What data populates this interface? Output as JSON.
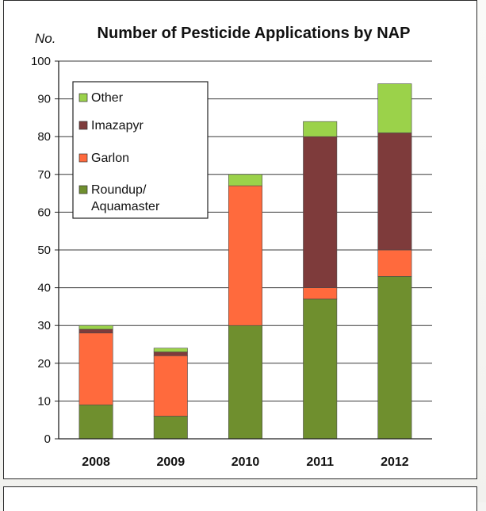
{
  "chart_data": {
    "type": "bar",
    "stacked": true,
    "title": "Number of Pesticide Applications by NAP",
    "ylabel": "No.",
    "xlabel": "",
    "ylim": [
      0,
      100
    ],
    "yticks": [
      0,
      10,
      20,
      30,
      40,
      50,
      60,
      70,
      80,
      90,
      100
    ],
    "categories": [
      "2008",
      "2009",
      "2010",
      "2011",
      "2012"
    ],
    "grid": true,
    "legend_position": "top-left",
    "series": [
      {
        "name": "Roundup/ Aquamaster",
        "label_lines": [
          "Roundup/",
          "Aquamaster"
        ],
        "color": "#6f8f2e",
        "values": [
          9,
          6,
          30,
          37,
          43
        ]
      },
      {
        "name": "Garlon",
        "label_lines": [
          "Garlon"
        ],
        "color": "#ff6a3d",
        "values": [
          19,
          16,
          37,
          3,
          7
        ]
      },
      {
        "name": "Imazapyr",
        "label_lines": [
          "Imazapyr"
        ],
        "color": "#7e3b3b",
        "values": [
          1,
          1,
          0,
          40,
          31
        ]
      },
      {
        "name": "Other",
        "label_lines": [
          "Other"
        ],
        "color": "#9bd24a",
        "values": [
          1,
          1,
          3,
          4,
          13
        ]
      }
    ]
  }
}
